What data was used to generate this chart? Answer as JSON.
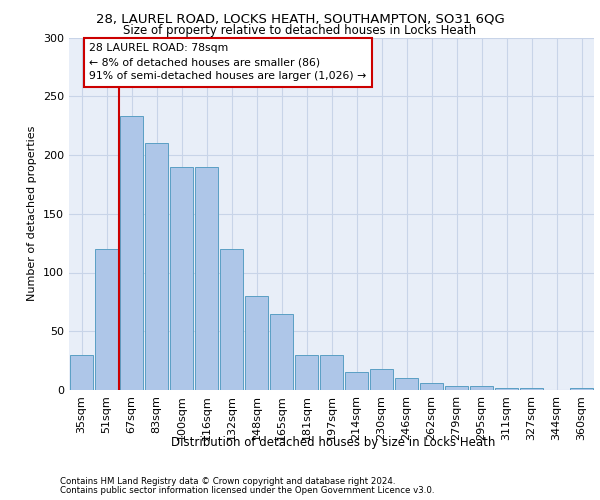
{
  "title_line1": "28, LAUREL ROAD, LOCKS HEATH, SOUTHAMPTON, SO31 6QG",
  "title_line2": "Size of property relative to detached houses in Locks Heath",
  "xlabel": "Distribution of detached houses by size in Locks Heath",
  "ylabel": "Number of detached properties",
  "categories": [
    "35sqm",
    "51sqm",
    "67sqm",
    "83sqm",
    "100sqm",
    "116sqm",
    "132sqm",
    "148sqm",
    "165sqm",
    "181sqm",
    "197sqm",
    "214sqm",
    "230sqm",
    "246sqm",
    "262sqm",
    "279sqm",
    "295sqm",
    "311sqm",
    "327sqm",
    "344sqm",
    "360sqm"
  ],
  "values": [
    30,
    120,
    233,
    210,
    190,
    190,
    120,
    80,
    65,
    30,
    30,
    15,
    18,
    10,
    6,
    3,
    3,
    2,
    2,
    0,
    2
  ],
  "bar_color": "#aec6e8",
  "bar_edge_color": "#5a9fc4",
  "annotation_text": "28 LAUREL ROAD: 78sqm\n← 8% of detached houses are smaller (86)\n91% of semi-detached houses are larger (1,026) →",
  "annotation_box_color": "#ffffff",
  "annotation_box_edge": "#cc0000",
  "vline_color": "#cc0000",
  "grid_color": "#c8d4e8",
  "background_color": "#e8eef8",
  "footer_line1": "Contains HM Land Registry data © Crown copyright and database right 2024.",
  "footer_line2": "Contains public sector information licensed under the Open Government Licence v3.0.",
  "ylim": [
    0,
    300
  ],
  "yticks": [
    0,
    50,
    100,
    150,
    200,
    250,
    300
  ]
}
